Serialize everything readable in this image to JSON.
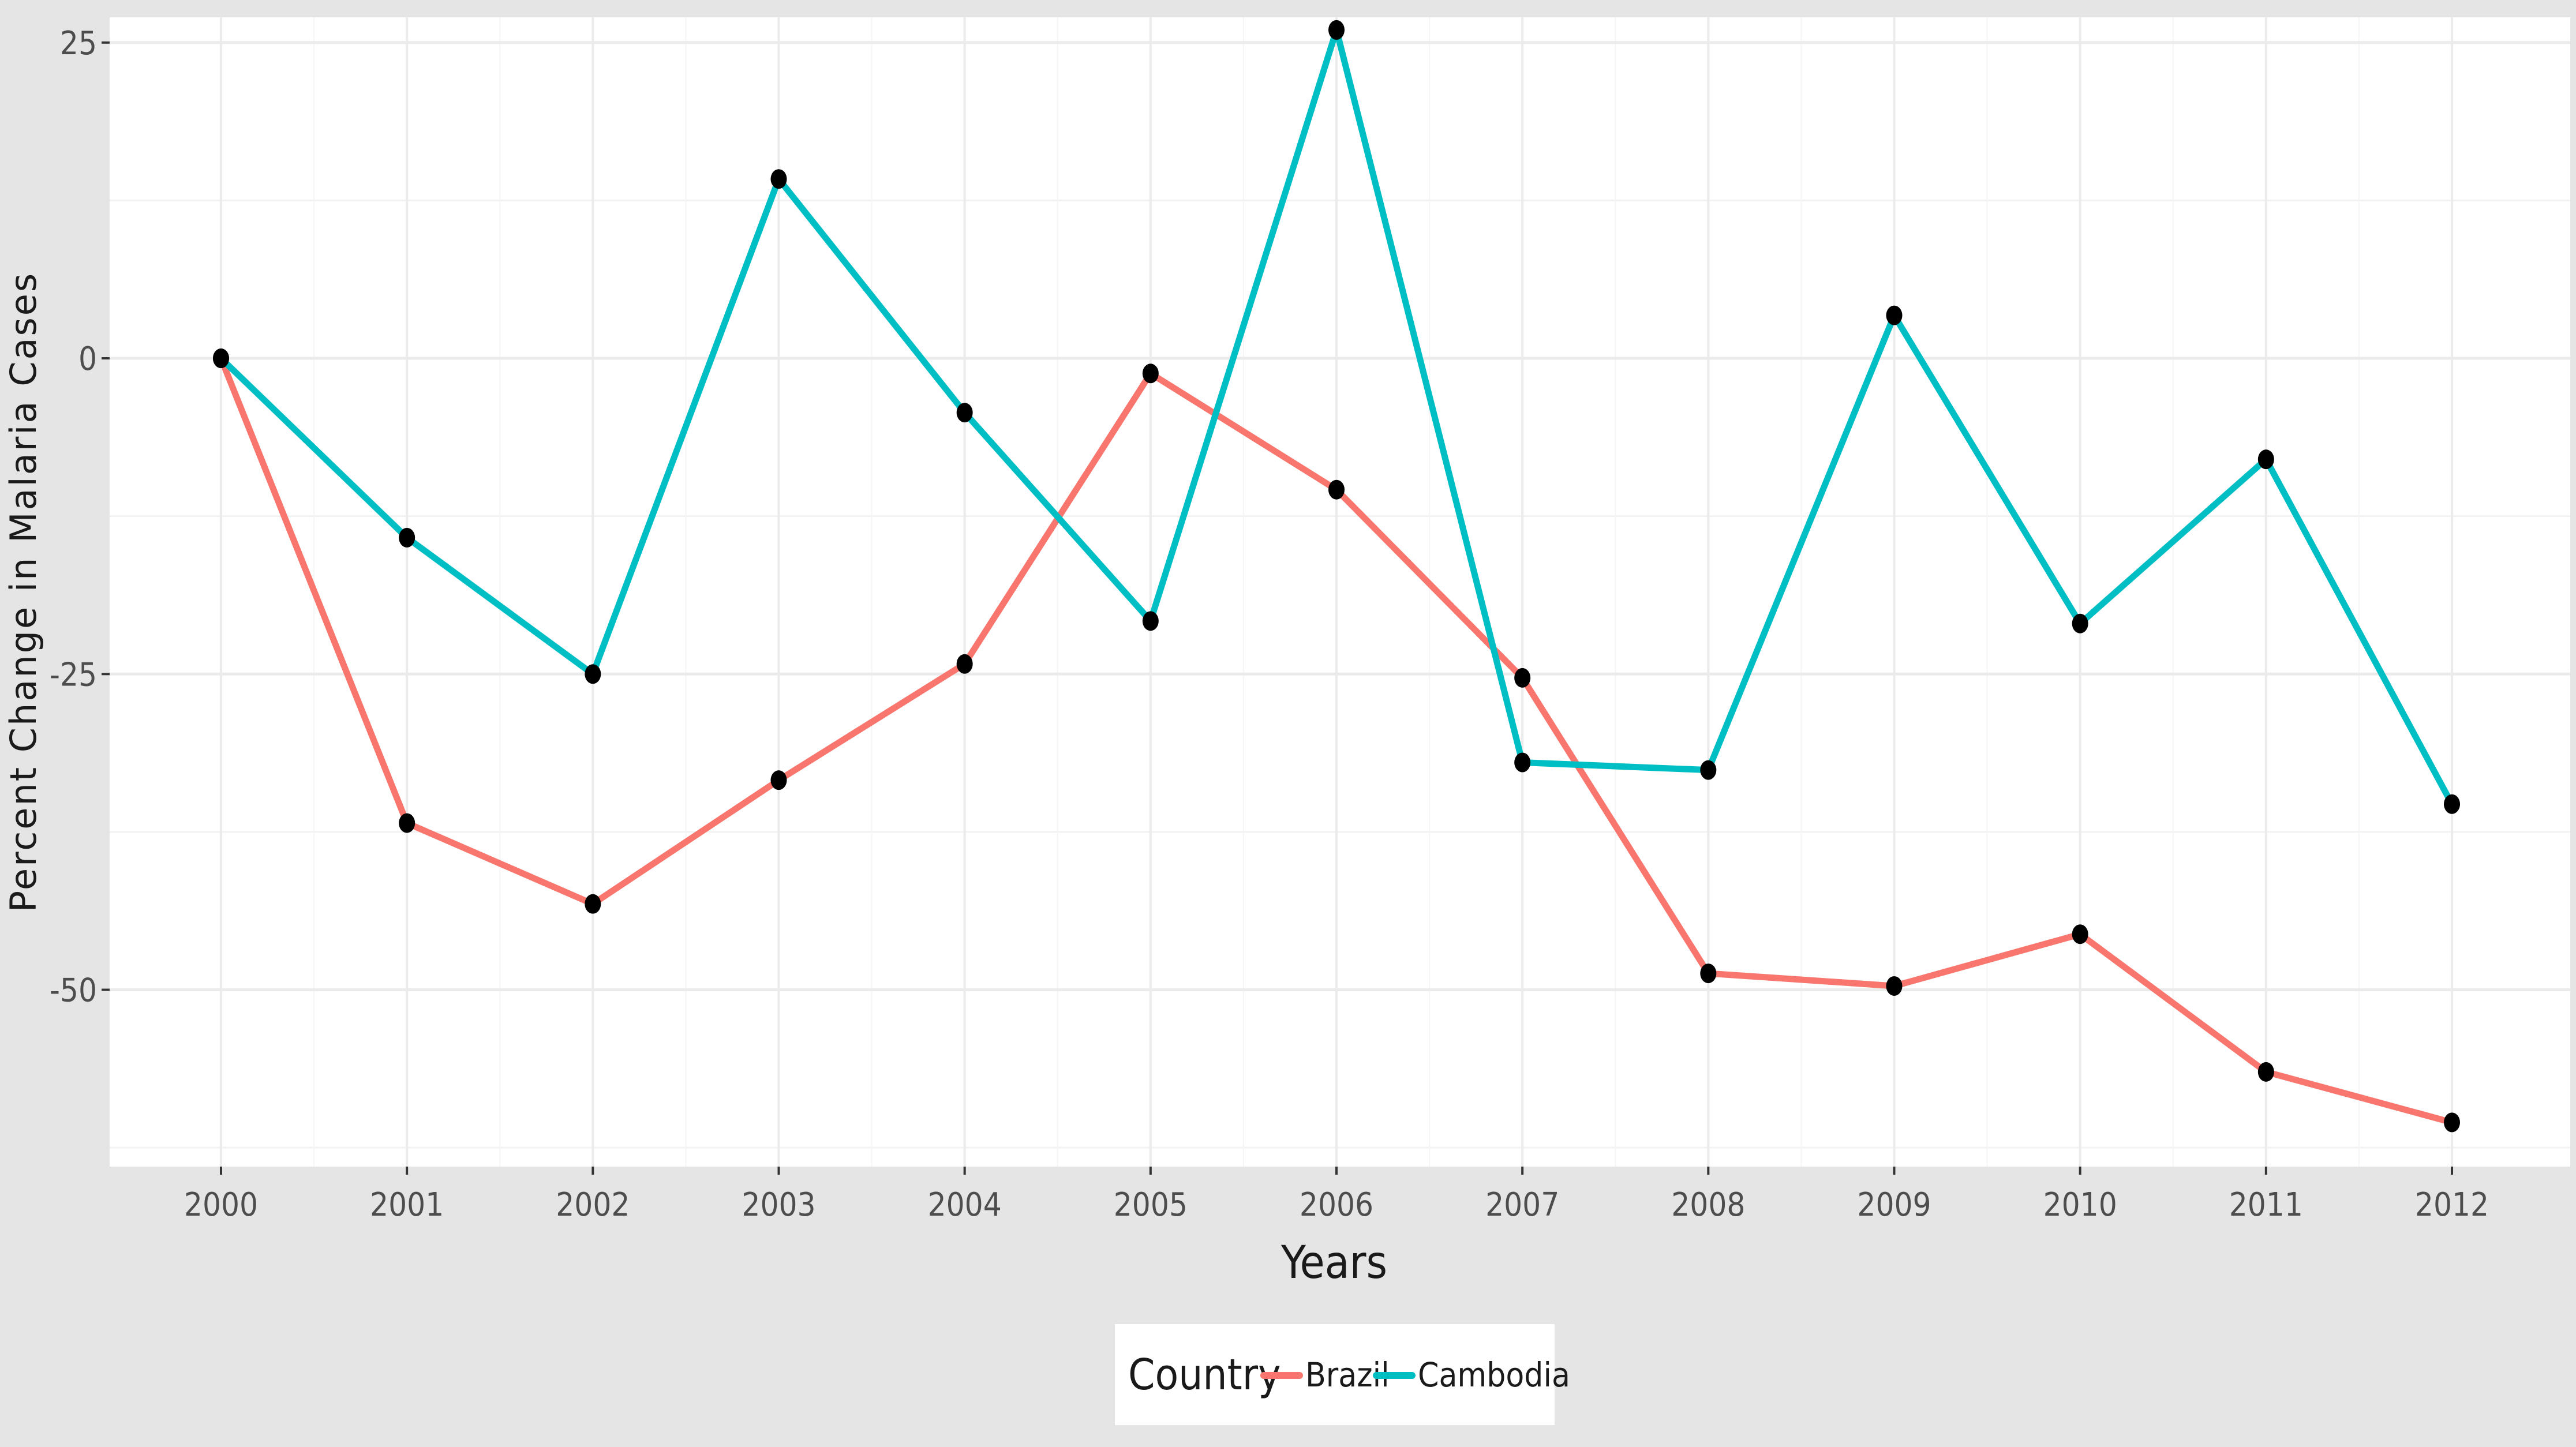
{
  "chart_data": {
    "type": "line",
    "title": "",
    "xlabel": "Years",
    "ylabel": "Percent Change in Malaria Cases",
    "x": [
      2000,
      2001,
      2002,
      2003,
      2004,
      2005,
      2006,
      2007,
      2008,
      2009,
      2010,
      2011,
      2012
    ],
    "ylim": [
      -64,
      27
    ],
    "yticks": [
      25,
      0,
      -25,
      -50
    ],
    "grid": true,
    "legend": {
      "title": "Country",
      "placement": "bottom"
    },
    "series": [
      {
        "name": "Brazil",
        "color": "#f8766d",
        "values": [
          0,
          -36.8,
          -43.2,
          -33.4,
          -24.2,
          -1.2,
          -10.4,
          -25.3,
          -48.7,
          -49.7,
          -45.6,
          -56.5,
          -60.5
        ]
      },
      {
        "name": "Cambodia",
        "color": "#00bfc4",
        "values": [
          0,
          -14.2,
          -25.0,
          14.2,
          -4.3,
          -20.8,
          26.0,
          -32.0,
          -32.6,
          3.4,
          -21.0,
          -8.0,
          -35.3
        ]
      }
    ],
    "point_color": "#000000"
  }
}
